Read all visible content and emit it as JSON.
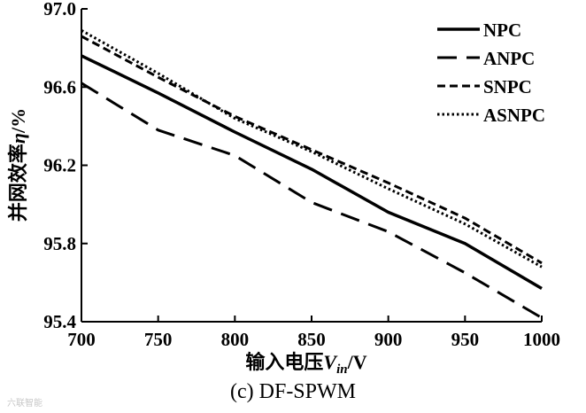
{
  "chart_data": {
    "type": "line",
    "xlabel_main": "输入电压",
    "xlabel_var": "V",
    "xlabel_sub": "in",
    "xlabel_unit": "/V",
    "ylabel_main": "并网效率",
    "ylabel_var": "η",
    "ylabel_unit": "/%",
    "caption": "(c) DF-SPWM",
    "xlim": [
      700,
      1000
    ],
    "ylim": [
      95.4,
      97.0
    ],
    "xticks": [
      700,
      750,
      800,
      850,
      900,
      950,
      1000
    ],
    "yticks": [
      "97.0",
      "96.6",
      "96.2",
      "95.8",
      "95.4"
    ],
    "legend_position": "top-right",
    "grid": false,
    "series": [
      {
        "name": "NPC",
        "style": "solid",
        "x": [
          700,
          750,
          800,
          850,
          900,
          950,
          1000
        ],
        "y": [
          96.76,
          96.57,
          96.37,
          96.18,
          95.96,
          95.8,
          95.57
        ]
      },
      {
        "name": "ANPC",
        "style": "longdash",
        "x": [
          700,
          750,
          800,
          850,
          900,
          950,
          1000
        ],
        "y": [
          96.62,
          96.38,
          96.25,
          96.01,
          95.86,
          95.65,
          95.42
        ]
      },
      {
        "name": "SNPC",
        "style": "dashed",
        "x": [
          700,
          750,
          800,
          850,
          900,
          950,
          1000
        ],
        "y": [
          96.86,
          96.65,
          96.45,
          96.28,
          96.11,
          95.93,
          95.7
        ]
      },
      {
        "name": "ASNPC",
        "style": "dotted",
        "x": [
          700,
          750,
          800,
          850,
          900,
          950,
          1000
        ],
        "y": [
          96.89,
          96.67,
          96.44,
          96.27,
          96.08,
          95.9,
          95.68
        ]
      }
    ]
  },
  "watermark": "六联智能"
}
